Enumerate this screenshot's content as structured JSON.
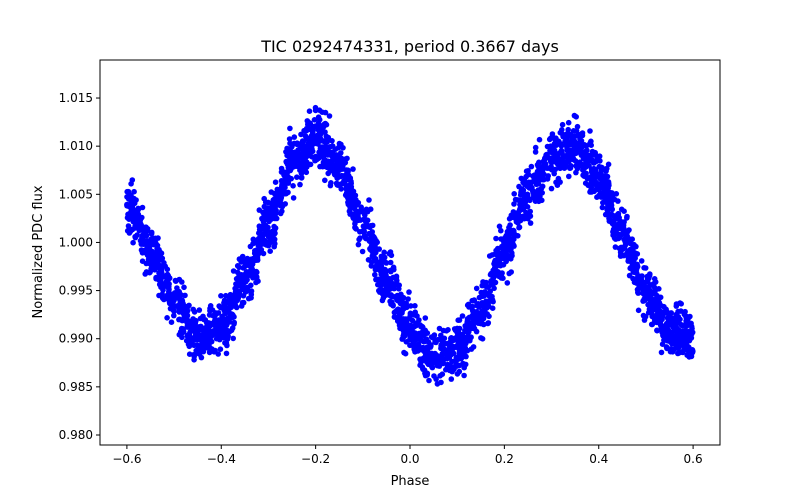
{
  "chart_data": {
    "type": "scatter",
    "title": "TIC 0292474331, period 0.3667 days",
    "xlabel": "Phase",
    "ylabel": "Normalized PDC flux",
    "xlim": [
      -0.657,
      0.657
    ],
    "ylim": [
      0.97896,
      1.01895
    ],
    "xticks": [
      -0.6,
      -0.4,
      -0.2,
      0.0,
      0.2,
      0.4,
      0.6
    ],
    "xtick_labels": [
      "−0.6",
      "−0.4",
      "−0.2",
      "0.0",
      "0.2",
      "0.4",
      "0.6"
    ],
    "yticks": [
      0.98,
      0.985,
      0.99,
      0.995,
      1.0,
      1.005,
      1.01,
      1.015
    ],
    "ytick_labels": [
      "0.980",
      "0.985",
      "0.990",
      "0.995",
      "1.000",
      "1.005",
      "1.010",
      "1.015"
    ],
    "grid": false,
    "marker_color": "#0000ff",
    "binned_trend": {
      "phase": [
        -0.6,
        -0.55,
        -0.5,
        -0.45,
        -0.4,
        -0.35,
        -0.3,
        -0.25,
        -0.2,
        -0.15,
        -0.1,
        -0.05,
        0.0,
        0.05,
        0.1,
        0.15,
        0.2,
        0.25,
        0.3,
        0.35,
        0.4,
        0.45,
        0.5,
        0.55,
        0.6
      ],
      "flux": [
        1.004,
        0.999,
        0.994,
        0.99,
        0.991,
        0.996,
        1.002,
        1.008,
        1.011,
        1.008,
        1.002,
        0.996,
        0.991,
        0.988,
        0.989,
        0.993,
        0.999,
        1.005,
        1.009,
        1.01,
        1.007,
        1.001,
        0.995,
        0.991,
        0.99
      ],
      "scatter_halfwidth": 0.003
    }
  }
}
